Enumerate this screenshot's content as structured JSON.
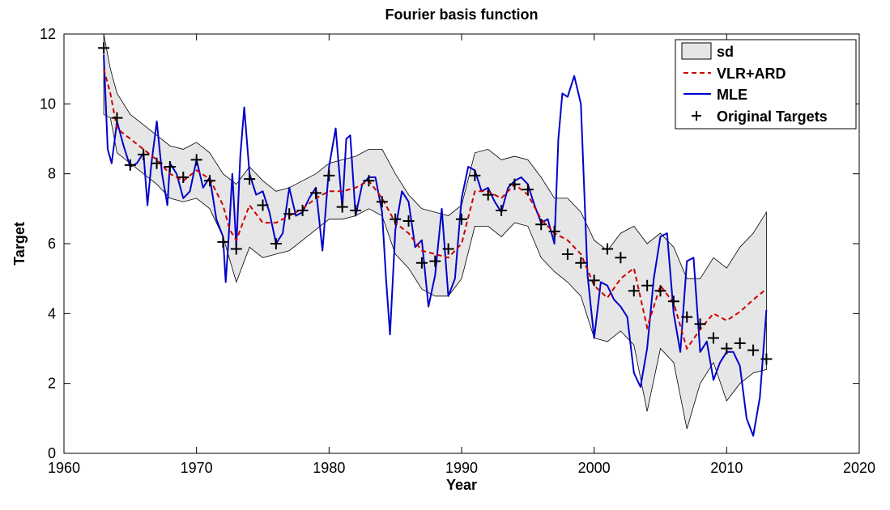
{
  "chart_data": {
    "type": "line",
    "title": "Fourier basis function",
    "xlabel": "Year",
    "ylabel": "Target",
    "xlim": [
      1960,
      2020
    ],
    "ylim": [
      0,
      12
    ],
    "x_ticks": [
      1960,
      1970,
      1980,
      1990,
      2000,
      2010,
      2020
    ],
    "y_ticks": [
      0,
      2,
      4,
      6,
      8,
      10,
      12
    ],
    "grid": false,
    "legend_position": "top-right",
    "colors": {
      "band_fill": "#e6e6e6",
      "band_edge": "#000000",
      "vlr": "#cc0000",
      "mle": "#0000cc",
      "targets": "#000000"
    },
    "legend": [
      {
        "label": "sd",
        "style": "band"
      },
      {
        "label": "VLR+ARD",
        "style": "dashed"
      },
      {
        "label": "MLE",
        "style": "solid"
      },
      {
        "label": "Original Targets",
        "style": "plus"
      }
    ],
    "targets": {
      "name": "Original Targets",
      "x": [
        1963,
        1964,
        1965,
        1966,
        1967,
        1968,
        1969,
        1970,
        1971,
        1972,
        1973,
        1974,
        1975,
        1976,
        1977,
        1978,
        1979,
        1980,
        1981,
        1982,
        1983,
        1984,
        1985,
        1986,
        1987,
        1988,
        1989,
        1990,
        1991,
        1992,
        1993,
        1994,
        1995,
        1996,
        1997,
        1998,
        1999,
        2000,
        2001,
        2002,
        2003,
        2004,
        2005,
        2006,
        2007,
        2008,
        2009,
        2010,
        2011,
        2012,
        2013
      ],
      "y": [
        11.6,
        9.6,
        8.25,
        8.55,
        8.3,
        8.2,
        7.9,
        8.4,
        7.8,
        6.05,
        5.85,
        7.85,
        7.1,
        6.0,
        6.85,
        6.95,
        7.45,
        7.95,
        7.05,
        6.95,
        7.8,
        7.2,
        6.7,
        6.65,
        5.45,
        5.5,
        5.85,
        6.7,
        7.95,
        7.4,
        6.95,
        7.7,
        7.55,
        6.55,
        6.35,
        5.7,
        5.45,
        4.95,
        5.85,
        5.6,
        4.65,
        4.8,
        4.65,
        4.35,
        3.9,
        3.7,
        3.3,
        3.0,
        3.15,
        2.95,
        2.7
      ]
    },
    "vlr_ard": {
      "name": "VLR+ARD",
      "x": [
        1963,
        1963.5,
        1964,
        1965,
        1966,
        1967,
        1968,
        1969,
        1970,
        1971,
        1972,
        1972.5,
        1973,
        1974,
        1975,
        1976,
        1977,
        1978,
        1979,
        1980,
        1981,
        1982,
        1983,
        1984,
        1985,
        1986,
        1987,
        1988,
        1989,
        1990,
        1991,
        1992,
        1993,
        1994,
        1995,
        1996,
        1997,
        1998,
        1999,
        2000,
        2001,
        2002,
        2003,
        2004,
        2005,
        2006,
        2007,
        2008,
        2009,
        2010,
        2011,
        2012,
        2013
      ],
      "y": [
        11.0,
        10.3,
        9.3,
        9.0,
        8.7,
        8.4,
        8.0,
        7.8,
        8.1,
        7.85,
        7.1,
        6.4,
        6.1,
        7.1,
        6.6,
        6.6,
        6.8,
        7.0,
        7.3,
        7.5,
        7.5,
        7.6,
        7.8,
        7.3,
        6.6,
        6.3,
        5.8,
        5.7,
        5.6,
        6.0,
        7.5,
        7.5,
        7.3,
        7.7,
        7.4,
        6.7,
        6.3,
        6.1,
        5.7,
        4.8,
        4.45,
        5.0,
        5.3,
        3.6,
        4.8,
        4.3,
        3.0,
        3.55,
        4.0,
        3.8,
        4.05,
        4.4,
        4.7
      ]
    },
    "mle": {
      "name": "MLE",
      "x": [
        1963,
        1963.3,
        1963.6,
        1964,
        1964.5,
        1965,
        1965.5,
        1966,
        1966.3,
        1966.6,
        1967,
        1967.4,
        1967.8,
        1968,
        1968.5,
        1969,
        1969.5,
        1970,
        1970.5,
        1971,
        1971.5,
        1972,
        1972.2,
        1972.4,
        1972.7,
        1973,
        1973.3,
        1973.6,
        1974,
        1974.5,
        1975,
        1975.5,
        1976,
        1976.5,
        1977,
        1977.5,
        1978,
        1978.5,
        1979,
        1979.5,
        1980,
        1980.5,
        1981,
        1981.3,
        1981.6,
        1982,
        1982.5,
        1983,
        1983.5,
        1984,
        1984.3,
        1984.6,
        1985,
        1985.5,
        1986,
        1986.5,
        1987,
        1987.5,
        1988,
        1988.5,
        1989,
        1989.5,
        1990,
        1990.5,
        1991,
        1991.5,
        1992,
        1992.5,
        1993,
        1993.5,
        1994,
        1994.5,
        1995,
        1995.5,
        1996,
        1996.5,
        1997,
        1997.3,
        1997.6,
        1998,
        1998.5,
        1999,
        1999.5,
        2000,
        2000.5,
        2001,
        2001.5,
        2002,
        2002.5,
        2003,
        2003.5,
        2004,
        2004.5,
        2005,
        2005.5,
        2006,
        2006.5,
        2007,
        2007.5,
        2008,
        2008.5,
        2009,
        2009.5,
        2010,
        2010.5,
        2011,
        2011.5,
        2012,
        2012.5,
        2013
      ],
      "y": [
        11.4,
        8.7,
        8.3,
        9.5,
        8.8,
        8.2,
        8.3,
        8.6,
        7.1,
        8.3,
        9.5,
        8.0,
        7.1,
        8.3,
        8.0,
        7.3,
        7.5,
        8.4,
        7.6,
        7.9,
        6.7,
        6.2,
        4.9,
        6.0,
        8.0,
        5.9,
        8.5,
        9.9,
        8.0,
        7.4,
        7.5,
        6.9,
        6.0,
        6.3,
        7.6,
        6.8,
        6.9,
        7.3,
        7.6,
        5.8,
        8.2,
        9.3,
        7.0,
        9.0,
        9.1,
        6.8,
        7.7,
        7.9,
        7.9,
        6.9,
        5.0,
        3.4,
        6.4,
        7.5,
        7.2,
        5.9,
        6.1,
        4.2,
        5.1,
        7.0,
        4.5,
        5.0,
        7.3,
        8.2,
        8.1,
        7.5,
        7.6,
        7.2,
        6.9,
        7.6,
        7.8,
        7.9,
        7.7,
        7.1,
        6.6,
        6.7,
        6.0,
        9.0,
        10.3,
        10.2,
        10.8,
        10.0,
        5.1,
        3.3,
        4.9,
        4.8,
        4.4,
        4.2,
        3.9,
        2.3,
        1.9,
        3.0,
        5.0,
        6.2,
        6.3,
        4.0,
        2.9,
        5.5,
        5.6,
        2.9,
        3.2,
        2.1,
        2.6,
        2.9,
        2.9,
        2.5,
        1.0,
        0.5,
        1.6,
        4.1
      ]
    },
    "sd_band": {
      "name": "sd",
      "x": [
        1963,
        1963.5,
        1964,
        1965,
        1966,
        1967,
        1968,
        1969,
        1970,
        1971,
        1972,
        1973,
        1974,
        1975,
        1976,
        1977,
        1978,
        1979,
        1980,
        1981,
        1982,
        1983,
        1984,
        1985,
        1986,
        1987,
        1988,
        1989,
        1990,
        1991,
        1992,
        1993,
        1994,
        1995,
        1996,
        1997,
        1998,
        1999,
        2000,
        2001,
        2002,
        2003,
        2004,
        2005,
        2006,
        2007,
        2008,
        2009,
        2010,
        2011,
        2012,
        2013
      ],
      "upper": [
        12.0,
        11.0,
        10.3,
        9.7,
        9.4,
        9.1,
        8.8,
        8.7,
        8.9,
        8.6,
        8.0,
        7.7,
        8.2,
        7.8,
        7.5,
        7.6,
        7.8,
        8.0,
        8.3,
        8.4,
        8.5,
        8.7,
        8.7,
        8.0,
        7.4,
        7.0,
        6.9,
        6.8,
        7.1,
        8.6,
        8.7,
        8.4,
        8.5,
        8.4,
        7.9,
        7.3,
        7.3,
        6.9,
        6.1,
        5.8,
        6.3,
        6.5,
        6.0,
        6.3,
        5.9,
        5.0,
        5.0,
        5.6,
        5.3,
        5.9,
        6.3,
        6.9
      ],
      "lower": [
        9.7,
        9.6,
        8.6,
        8.3,
        8.0,
        7.7,
        7.3,
        7.2,
        7.3,
        7.0,
        6.2,
        4.9,
        5.9,
        5.6,
        5.7,
        5.8,
        6.1,
        6.4,
        6.7,
        6.7,
        6.8,
        7.0,
        6.8,
        5.7,
        5.3,
        4.7,
        4.5,
        4.5,
        5.0,
        6.5,
        6.5,
        6.2,
        6.6,
        6.5,
        5.6,
        5.2,
        4.9,
        4.5,
        3.3,
        3.2,
        3.5,
        3.1,
        1.2,
        3.0,
        2.6,
        0.7,
        2.0,
        2.6,
        1.5,
        2.0,
        2.3,
        2.4
      ]
    }
  }
}
